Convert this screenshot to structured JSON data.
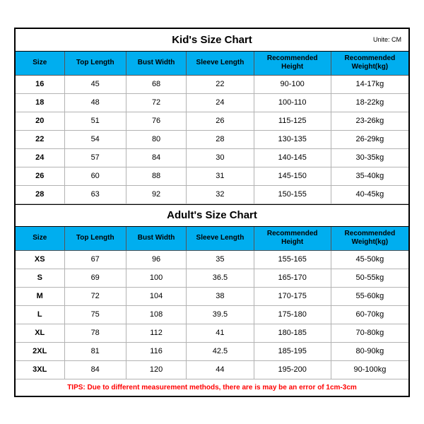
{
  "kids": {
    "title": "Kid's Size Chart",
    "unit": "Unite: CM",
    "columns": [
      "Size",
      "Top Length",
      "Bust Width",
      "Sleeve Length",
      "Recommended Height",
      "Recommended Weight(kg)"
    ],
    "rows": [
      [
        "16",
        "45",
        "68",
        "22",
        "90-100",
        "14-17kg"
      ],
      [
        "18",
        "48",
        "72",
        "24",
        "100-110",
        "18-22kg"
      ],
      [
        "20",
        "51",
        "76",
        "26",
        "115-125",
        "23-26kg"
      ],
      [
        "22",
        "54",
        "80",
        "28",
        "130-135",
        "26-29kg"
      ],
      [
        "24",
        "57",
        "84",
        "30",
        "140-145",
        "30-35kg"
      ],
      [
        "26",
        "60",
        "88",
        "31",
        "145-150",
        "35-40kg"
      ],
      [
        "28",
        "63",
        "92",
        "32",
        "150-155",
        "40-45kg"
      ]
    ]
  },
  "adults": {
    "title": "Adult's Size Chart",
    "columns": [
      "Size",
      "Top Length",
      "Bust Width",
      "Sleeve Length",
      "Recommended Height",
      "Recommended Weight(kg)"
    ],
    "rows": [
      [
        "XS",
        "67",
        "96",
        "35",
        "155-165",
        "45-50kg"
      ],
      [
        "S",
        "69",
        "100",
        "36.5",
        "165-170",
        "50-55kg"
      ],
      [
        "M",
        "72",
        "104",
        "38",
        "170-175",
        "55-60kg"
      ],
      [
        "L",
        "75",
        "108",
        "39.5",
        "175-180",
        "60-70kg"
      ],
      [
        "XL",
        "78",
        "112",
        "41",
        "180-185",
        "70-80kg"
      ],
      [
        "2XL",
        "81",
        "116",
        "42.5",
        "185-195",
        "80-90kg"
      ],
      [
        "3XL",
        "84",
        "120",
        "44",
        "195-200",
        "90-100kg"
      ]
    ]
  },
  "tips": "TIPS: Due to different measurement methods, there are is may be an error of 1cm-3cm",
  "colors": {
    "header_bg": "#00aeef",
    "border_outer": "#000000",
    "border_inner": "#b3b3b3",
    "tips_color": "#ff0000"
  }
}
